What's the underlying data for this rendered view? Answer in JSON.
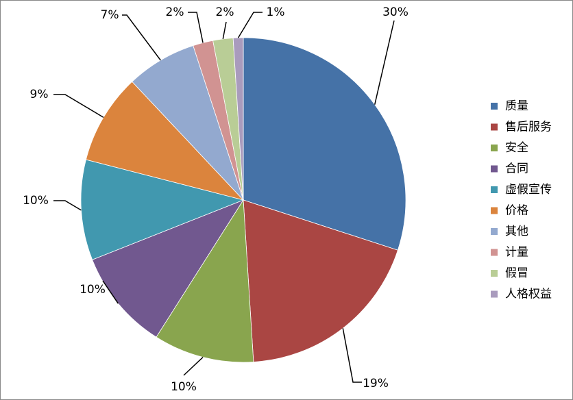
{
  "chart_data": {
    "type": "pie",
    "categories": [
      "质量",
      "售后服务",
      "安全",
      "合同",
      "虚假宣传",
      "价格",
      "其他",
      "计量",
      "假冒",
      "人格权益"
    ],
    "values": [
      30,
      19,
      10,
      10,
      10,
      9,
      7,
      2,
      2,
      1
    ],
    "value_labels": [
      "30%",
      "19%",
      "10%",
      "10%",
      "10%",
      "9%",
      "7%",
      "2%",
      "2%",
      "1%"
    ],
    "colors": [
      "#4572a7",
      "#aa4643",
      "#89a54e",
      "#71588f",
      "#4198af",
      "#db843d",
      "#93a9cf",
      "#d19392",
      "#b9cd96",
      "#a99bbd"
    ],
    "legend": "right"
  }
}
